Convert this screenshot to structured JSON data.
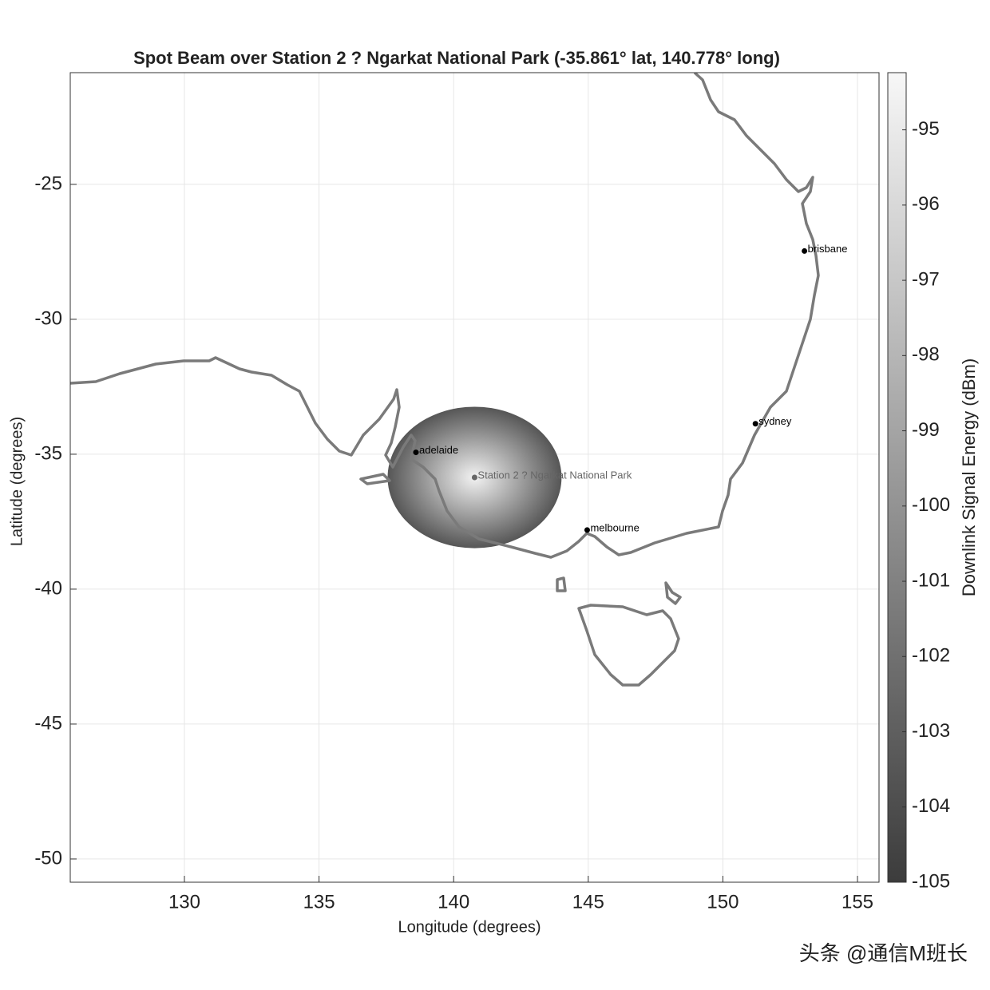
{
  "chart_data": {
    "type": "map",
    "title": "Spot Beam over Station 2 ? Ngarkat National Park (-35.861° lat, 140.778° long)",
    "xlabel": "Longitude (degrees)",
    "ylabel": "Latitude (degrees)",
    "xlim": [
      125.76,
      155.8
    ],
    "ylim": [
      -50.86,
      -20.86
    ],
    "xticks": [
      130,
      135,
      140,
      145,
      150,
      155
    ],
    "yticks": [
      -25,
      -30,
      -35,
      -40,
      -45,
      -50
    ],
    "grid": true,
    "beam": {
      "center_x": 140.778,
      "center_y": -35.861,
      "radius_x": 3.23,
      "radius_y": 2.62,
      "peak": -94.5,
      "edge": -103.5
    },
    "points": {
      "labels": [
        "adelaide",
        "Station 2 ? Ngarkat National Park",
        "melbourne",
        "sydney",
        "brisbane"
      ],
      "x": [
        138.6,
        140.778,
        144.96,
        151.21,
        153.03
      ],
      "y": [
        -34.93,
        -35.861,
        -37.81,
        -33.87,
        -27.47
      ],
      "colors": [
        "#000000",
        "#666666",
        "#000000",
        "#000000",
        "#000000"
      ]
    },
    "colorbar": {
      "label": "Downlink Signal Energy (dBm)",
      "clim": [
        -105,
        -94.24
      ],
      "ticks": [
        -95,
        -96,
        -97,
        -98,
        -99,
        -100,
        -101,
        -102,
        -103,
        -104,
        -105
      ],
      "colormap": [
        "#3c3c3c",
        "#f7f7f7"
      ]
    }
  },
  "watermark": "头条 @通信M班长"
}
